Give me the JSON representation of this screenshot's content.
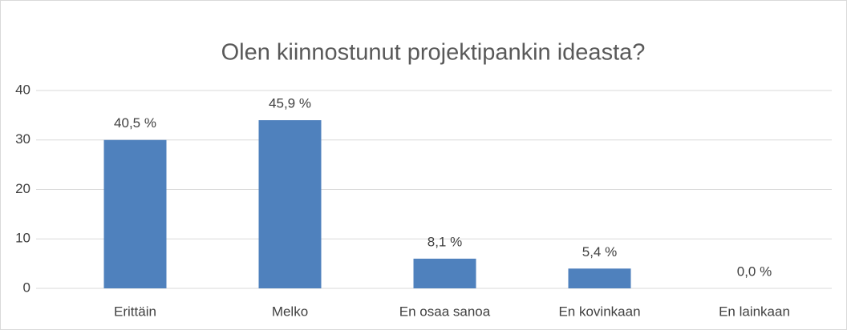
{
  "chart_data": {
    "type": "bar",
    "title": "Olen kiinnostunut projektipankin ideasta?",
    "categories": [
      "Erittäin",
      "Melko",
      "En osaa sanoa",
      "En kovinkaan",
      "En lainkaan"
    ],
    "values": [
      30,
      34,
      6,
      4,
      0
    ],
    "percent_labels": [
      {
        "value": 40.5,
        "label": "40,5 %"
      },
      {
        "value": 45.9,
        "label": "45,9 %"
      },
      {
        "value": 8.1,
        "label": "8,1 %"
      },
      {
        "value": 5.4,
        "label": "5,4 %"
      },
      {
        "value": 0.0,
        "label": "0,0 %"
      }
    ],
    "color": "#4f81bd",
    "ylim": [
      0,
      40
    ],
    "yticks": [
      0,
      10,
      20,
      30,
      40
    ],
    "grid": true
  }
}
